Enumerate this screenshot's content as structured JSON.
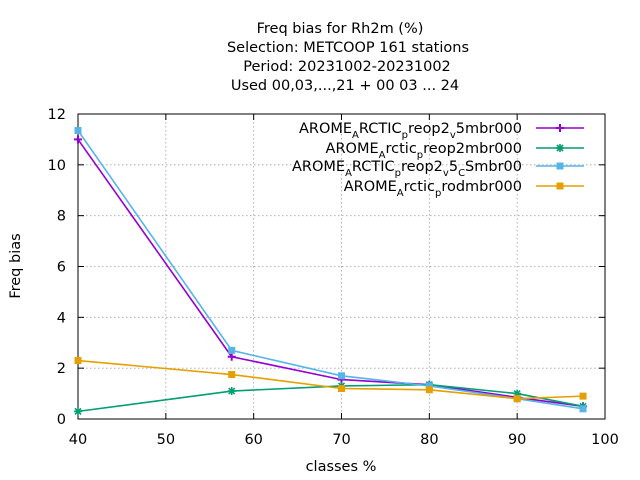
{
  "chart_data": {
    "type": "line",
    "title_lines": [
      "Freq bias  for Rh2m (%)",
      "Selection: METCOOP    161 stations",
      "Period: 20231002-20231002",
      "Used  00,03,...,21  + 00 03 ... 24"
    ],
    "xlabel": "classes %",
    "ylabel": "Freq bias",
    "xlim": [
      40,
      100
    ],
    "ylim": [
      0,
      12
    ],
    "xticks": [
      40,
      50,
      60,
      70,
      80,
      90,
      100
    ],
    "yticks": [
      0,
      2,
      4,
      6,
      8,
      10,
      12
    ],
    "grid": true,
    "legend_position": "top-right",
    "series": [
      {
        "name": "AROME_ARCTIC_preop2_v5mbr000",
        "legend_parts": [
          [
            "AROME",
            ""
          ],
          [
            "A",
            "sub"
          ],
          [
            "RCTIC",
            ""
          ],
          [
            "p",
            "sub"
          ],
          [
            "reop2",
            ""
          ],
          [
            "v",
            "sub"
          ],
          [
            "5mbr000",
            ""
          ]
        ],
        "color": "#9400d3",
        "marker": "plus",
        "x": [
          40,
          57.5,
          70,
          80,
          90,
          97.5
        ],
        "y": [
          11.0,
          2.45,
          1.55,
          1.35,
          0.85,
          0.5
        ]
      },
      {
        "name": "AROME_Arctic_preop2mbr000",
        "legend_parts": [
          [
            "AROME",
            ""
          ],
          [
            "A",
            "sub"
          ],
          [
            "rctic",
            ""
          ],
          [
            "p",
            "sub"
          ],
          [
            "reop2mbr000",
            ""
          ]
        ],
        "color": "#009e73",
        "marker": "star",
        "x": [
          40,
          57.5,
          70,
          80,
          90,
          97.5
        ],
        "y": [
          0.3,
          1.1,
          1.3,
          1.35,
          1.0,
          0.5
        ]
      },
      {
        "name": "AROME_ARCTIC_preop2_v5_CSmbr00",
        "legend_parts": [
          [
            "AROME",
            ""
          ],
          [
            "A",
            "sub"
          ],
          [
            "RCTIC",
            ""
          ],
          [
            "p",
            "sub"
          ],
          [
            "reop2",
            ""
          ],
          [
            "v",
            "sub"
          ],
          [
            "5",
            ""
          ],
          [
            "C",
            "sub"
          ],
          [
            "Smbr00",
            ""
          ]
        ],
        "color": "#56b4e9",
        "marker": "box",
        "x": [
          40,
          57.5,
          70,
          80,
          90,
          97.5
        ],
        "y": [
          11.35,
          2.7,
          1.7,
          1.3,
          0.8,
          0.4
        ]
      },
      {
        "name": "AROME_Arctic_prodmbr000",
        "legend_parts": [
          [
            "AROME",
            ""
          ],
          [
            "A",
            "sub"
          ],
          [
            "rctic",
            ""
          ],
          [
            "p",
            "sub"
          ],
          [
            "rodmbr000",
            ""
          ]
        ],
        "color": "#e69f00",
        "marker": "box",
        "x": [
          40,
          57.5,
          70,
          80,
          90,
          97.5
        ],
        "y": [
          2.3,
          1.75,
          1.2,
          1.15,
          0.8,
          0.9
        ]
      }
    ]
  }
}
